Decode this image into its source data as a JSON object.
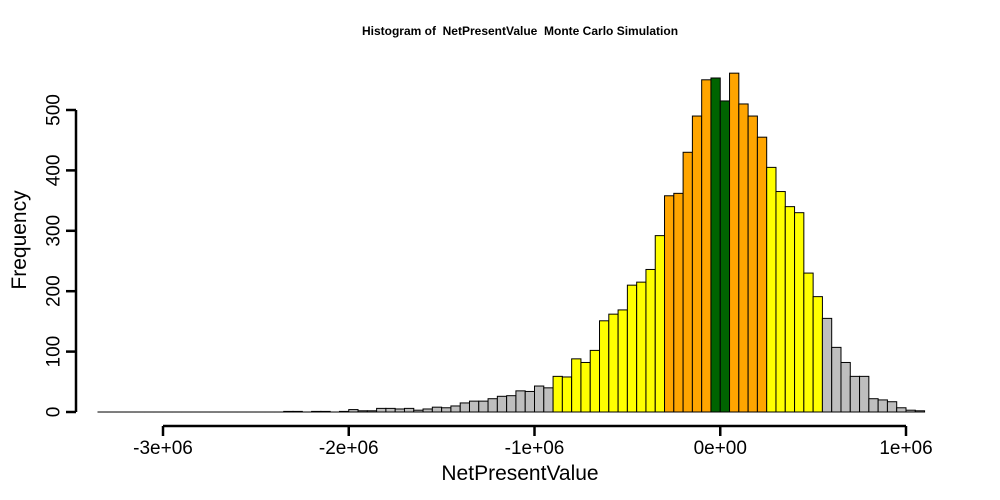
{
  "chart_data": {
    "type": "bar",
    "title": "Histogram of  NetPresentValue  Monte Carlo Simulation",
    "xlabel": "NetPresentValue",
    "ylabel": "Frequency",
    "xlim": [
      -3300000,
      1150000
    ],
    "ylim": [
      0,
      560
    ],
    "x_ticks": [
      -3000000,
      -2000000,
      -1000000,
      0,
      1000000
    ],
    "x_tick_labels": [
      "-3e+06",
      "-2e+06",
      "-1e+06",
      "0e+00",
      "1e+06"
    ],
    "y_ticks": [
      0,
      100,
      200,
      300,
      400,
      500
    ],
    "y_tick_labels": [
      "0",
      "100",
      "200",
      "300",
      "400",
      "500"
    ],
    "bin_width": 50000,
    "bin_start": -3350000,
    "values": [
      0,
      0,
      0,
      0,
      0,
      0,
      0,
      0,
      0,
      0,
      0,
      0,
      0,
      0,
      0,
      0,
      0,
      0,
      0,
      0,
      1,
      1,
      0,
      1,
      1,
      0,
      1,
      4,
      2,
      2,
      6,
      6,
      5,
      6,
      3,
      5,
      8,
      7,
      10,
      15,
      18,
      18,
      22,
      26,
      27,
      35,
      34,
      43,
      40,
      59,
      58,
      88,
      82,
      102,
      151,
      162,
      169,
      210,
      215,
      236,
      292,
      358,
      362,
      430,
      490,
      550,
      553,
      515,
      561,
      510,
      490,
      455,
      405,
      365,
      340,
      330,
      230,
      191,
      155,
      107,
      82,
      59,
      59,
      22,
      20,
      17,
      7,
      3,
      2
    ],
    "colors": {
      "gray": "#bebebe",
      "yellow": "#ffff00",
      "orange": "#ffa500",
      "green": "#006400"
    },
    "color_bands": [
      {
        "color": "gray",
        "from": -3350000,
        "to": -900000
      },
      {
        "color": "yellow",
        "from": -900000,
        "to": -300000
      },
      {
        "color": "orange",
        "from": -300000,
        "to": -50000
      },
      {
        "color": "green",
        "from": -50000,
        "to": 50000
      },
      {
        "color": "orange",
        "from": 50000,
        "to": 250000
      },
      {
        "color": "yellow",
        "from": 250000,
        "to": 550000
      },
      {
        "color": "gray",
        "from": 550000,
        "to": 1100000
      }
    ]
  }
}
